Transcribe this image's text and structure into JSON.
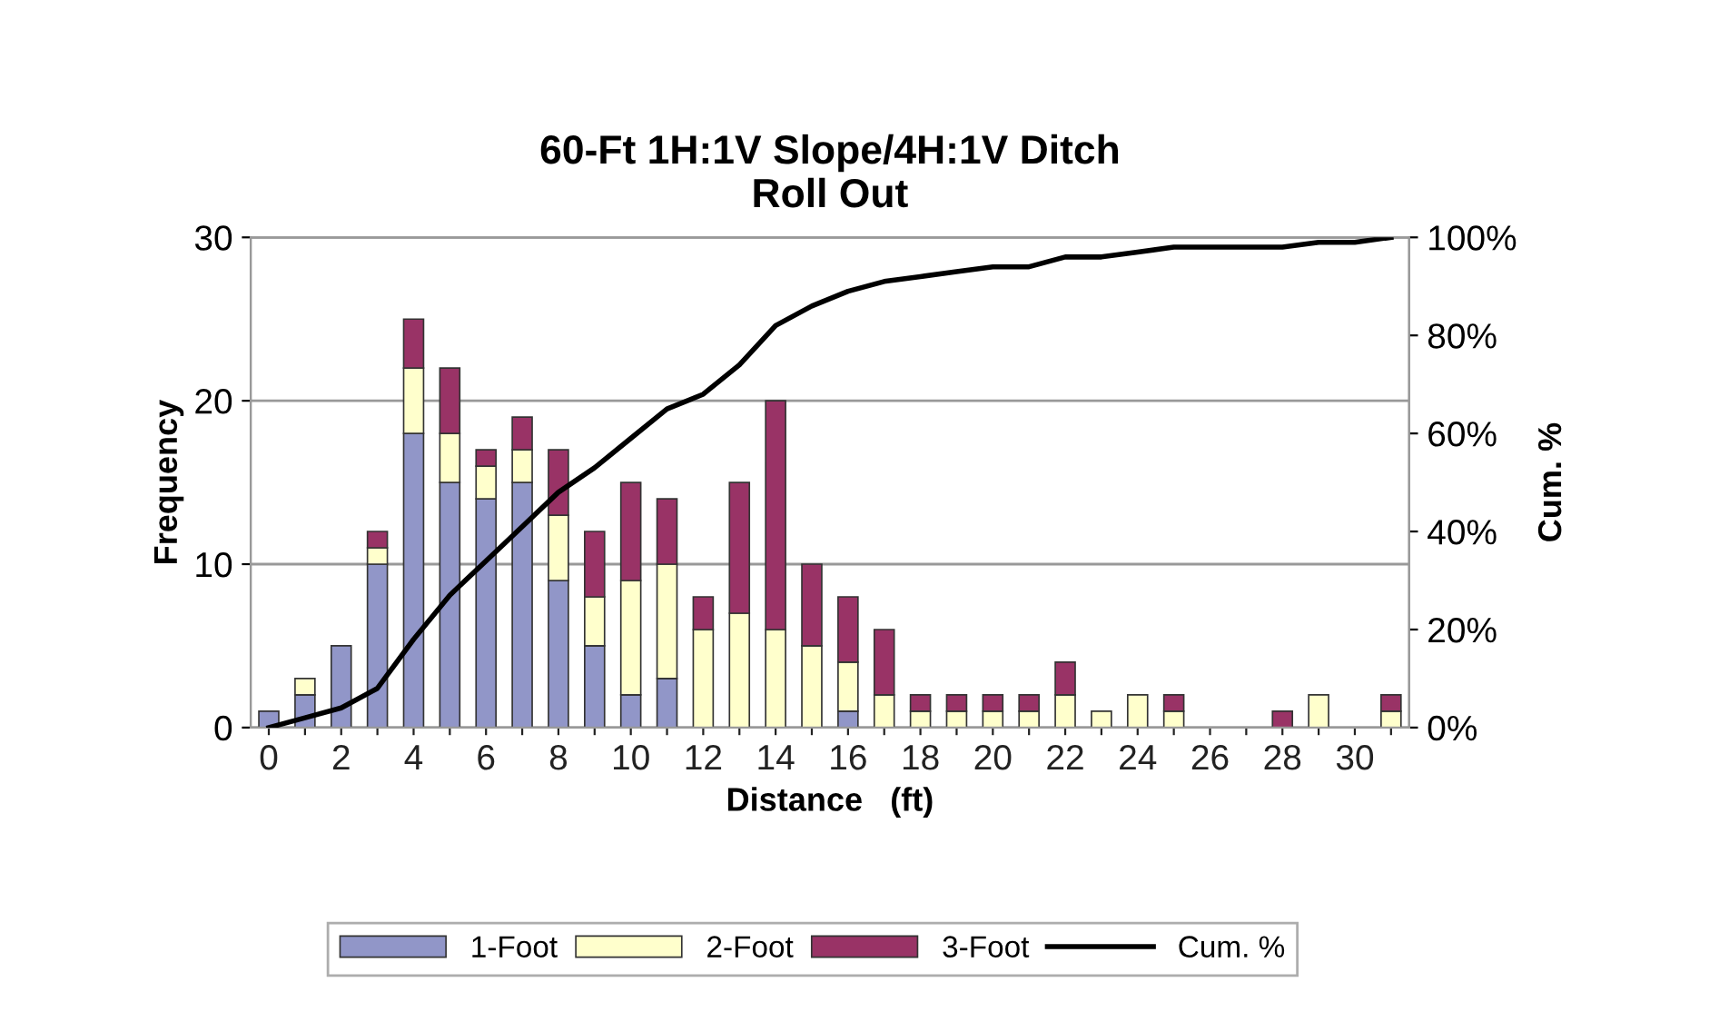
{
  "chart_data": {
    "type": "bar",
    "title": "60-Ft 1H:1V Slope/4H:1V Ditch\nRoll Out",
    "xlabel": "Distance   (ft)",
    "ylabel": "Frequency",
    "y2label": "Cum. %",
    "categories": [
      "0",
      null,
      "2",
      null,
      "4",
      null,
      "6",
      null,
      "8",
      null,
      "10",
      null,
      "12",
      null,
      "14",
      null,
      "16",
      null,
      "18",
      null,
      "20",
      null,
      "22",
      null,
      "24",
      null,
      "26",
      null,
      "28",
      null,
      "30",
      null
    ],
    "stacked": true,
    "series": [
      {
        "name": "1-Foot",
        "color": "#9196c8",
        "values": [
          1,
          2,
          5,
          10,
          18,
          15,
          14,
          15,
          9,
          5,
          2,
          3,
          0,
          0,
          0,
          0,
          1,
          0,
          0,
          0,
          0,
          0,
          0,
          0,
          0,
          0,
          0,
          0,
          0,
          0,
          0,
          0
        ]
      },
      {
        "name": "2-Foot",
        "color": "#ffffcc",
        "values": [
          0,
          1,
          0,
          1,
          4,
          3,
          2,
          2,
          4,
          3,
          7,
          7,
          6,
          7,
          6,
          5,
          3,
          2,
          1,
          1,
          1,
          1,
          2,
          1,
          2,
          1,
          0,
          0,
          0,
          2,
          0,
          1
        ]
      },
      {
        "name": "3-Foot",
        "color": "#993366",
        "values": [
          0,
          0,
          0,
          1,
          3,
          4,
          1,
          2,
          4,
          4,
          6,
          4,
          2,
          8,
          14,
          5,
          4,
          4,
          1,
          1,
          1,
          1,
          2,
          0,
          0,
          1,
          0,
          0,
          1,
          0,
          0,
          1
        ]
      },
      {
        "name": "Cum. %",
        "type": "line",
        "axis": "y2",
        "color": "#000000",
        "values": [
          0,
          2,
          4,
          8,
          18,
          27,
          34,
          41,
          48,
          53,
          59,
          65,
          68,
          74,
          82,
          86,
          89,
          91,
          92,
          93,
          94,
          94,
          96,
          96,
          97,
          98,
          98,
          98,
          98,
          99,
          99,
          100
        ]
      }
    ],
    "ylim": [
      0,
      30
    ],
    "yticks": [
      0,
      10,
      20,
      30
    ],
    "y2lim": [
      0,
      100
    ],
    "y2ticks": [
      {
        "value": 0,
        "label": "0%"
      },
      {
        "value": 20,
        "label": "20%"
      },
      {
        "value": 40,
        "label": "40%"
      },
      {
        "value": 60,
        "label": "60%"
      },
      {
        "value": 80,
        "label": "80%"
      },
      {
        "value": 100,
        "label": "100%"
      }
    ],
    "grid": "y",
    "legend": "bottom"
  }
}
